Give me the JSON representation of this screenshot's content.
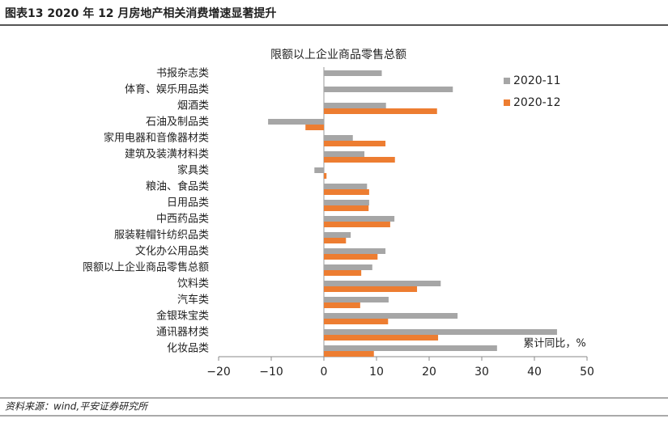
{
  "header": {
    "title": "图表13    2020 年 12 月房地产相关消费增速显著提升"
  },
  "chart_data": {
    "type": "hbar",
    "title": "限额以上企业商品零售总额",
    "categories": [
      "书报杂志类",
      "体育、娱乐用品类",
      "烟酒类",
      "石油及制品类",
      "家用电器和音像器材类",
      "建筑及装潢材料类",
      "家具类",
      "粮油、食品类",
      "日用品类",
      "中西药品类",
      "服装鞋帽针纺织品类",
      "文化办公用品类",
      "限额以上企业商品零售总额",
      "饮料类",
      "汽车类",
      "金银珠宝类",
      "通讯器材类",
      "化妆品类"
    ],
    "series": [
      {
        "name": "2020-11",
        "color": "#a6a6a6",
        "values": [
          11,
          24.5,
          11.8,
          -10.6,
          5.5,
          7.7,
          -1.8,
          8.2,
          8.6,
          13.4,
          5.1,
          11.7,
          9.2,
          22.2,
          12.3,
          25.4,
          44.3,
          32.9
        ]
      },
      {
        "name": "2020-12",
        "color": "#ed7d31",
        "values": [
          null,
          null,
          21.5,
          -3.5,
          11.7,
          13.5,
          0.5,
          8.6,
          8.5,
          12.6,
          4.2,
          10.2,
          7.1,
          17.7,
          6.9,
          12.2,
          21.7,
          9.5
        ]
      }
    ],
    "xlim": [
      -20,
      50
    ],
    "xticks": [
      {
        "value": -20,
        "label": "−20"
      },
      {
        "value": -10,
        "label": "−10"
      },
      0,
      10,
      20,
      30,
      40,
      50
    ],
    "annotation": "累计同比，%",
    "legend": "top-right"
  },
  "footer": {
    "source": "资料来源：wind,平安证券研究所"
  }
}
